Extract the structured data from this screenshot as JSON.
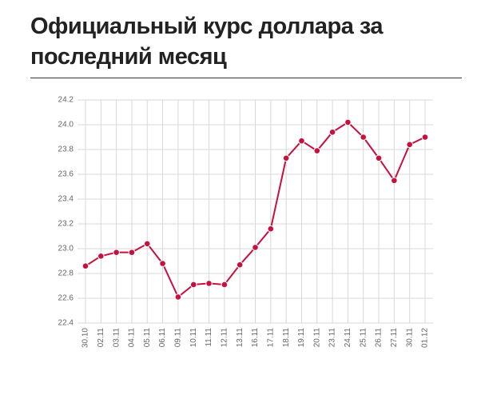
{
  "chart_data": {
    "type": "line",
    "title": "Официальный курс доллара за последний месяц",
    "categories": [
      "30.10",
      "02.11",
      "03.11",
      "04.11",
      "05.11",
      "06.11",
      "09.11",
      "10.11",
      "11.11",
      "12.11",
      "13.11",
      "16.11",
      "17.11",
      "18.11",
      "19.11",
      "20.11",
      "23.11",
      "24.11",
      "25.11",
      "26.11",
      "27.11",
      "30.11",
      "01.12"
    ],
    "series": [
      {
        "color": "#c8103e",
        "values": [
          22.86,
          22.94,
          22.97,
          22.97,
          23.04,
          22.88,
          22.61,
          22.71,
          22.72,
          22.71,
          22.87,
          23.01,
          23.16,
          23.73,
          23.87,
          23.79,
          23.94,
          24.02,
          23.9,
          23.73,
          23.55,
          23.84,
          23.9
        ]
      }
    ],
    "ylim": [
      22.4,
      24.2
    ],
    "yticks": [
      22.4,
      22.6,
      22.8,
      {
        "value": 23,
        "label": "23.0"
      },
      23.2,
      23.4,
      23.6,
      23.8,
      {
        "value": 24,
        "label": "24.0"
      },
      24.2
    ],
    "grid": true
  }
}
